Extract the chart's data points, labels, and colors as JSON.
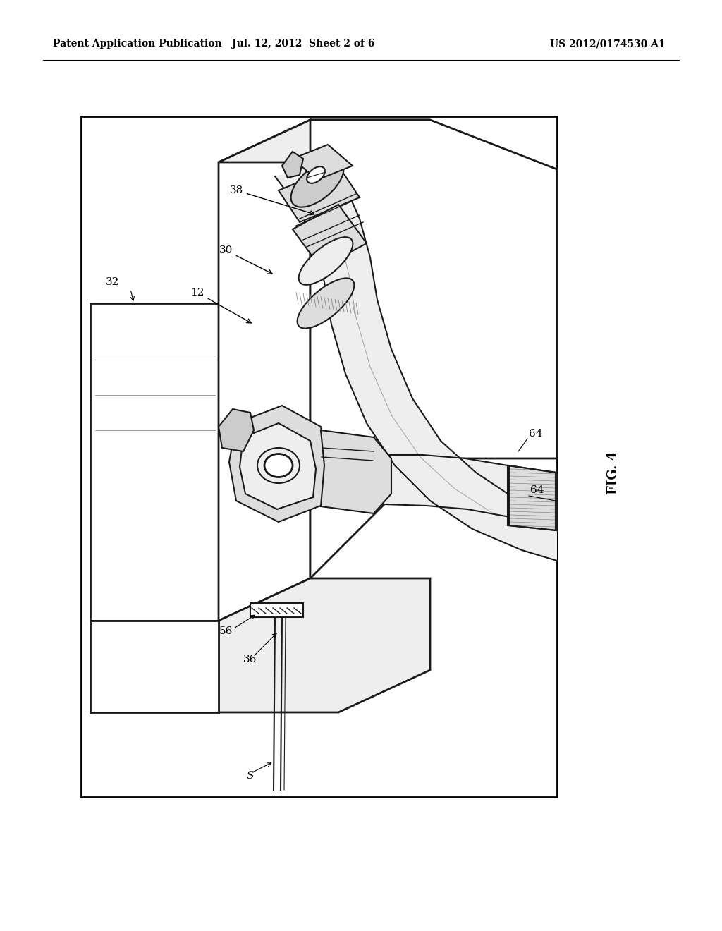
{
  "bg_color": "#ffffff",
  "lc": "#1a1a1a",
  "title_left": "Patent Application Publication",
  "title_mid": "Jul. 12, 2012  Sheet 2 of 6",
  "title_right": "US 2012/0174530 A1",
  "fig_label": "FIG. 4",
  "gray1": "#cccccc",
  "gray2": "#dddddd",
  "gray3": "#eeeeee",
  "gray4": "#bbbbbb",
  "gray5": "#e5e5e5"
}
